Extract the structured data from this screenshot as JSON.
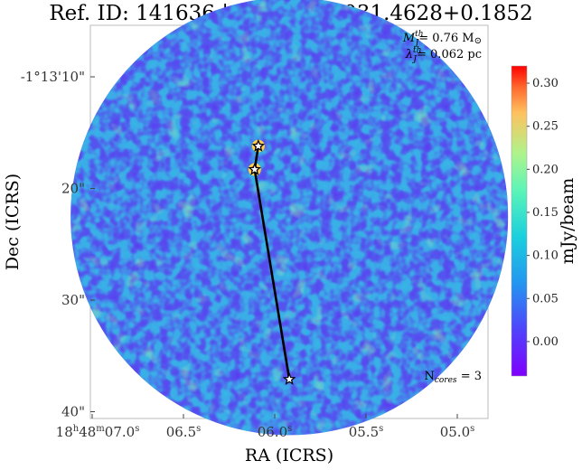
{
  "chart_data": {
    "type": "heatmap",
    "title": "Ref. ID: 141636 | AG ID: AG031.4628+0.1852",
    "xlabel": "RA (ICRS)",
    "ylabel": "Dec (ICRS)",
    "colorbar_label": "mJy/beam",
    "colormap": "rainbow",
    "colorbar_range": [
      -0.04,
      0.32
    ],
    "colorbar_ticks": [
      0.0,
      0.05,
      0.1,
      0.15,
      0.2,
      0.25,
      0.3
    ],
    "colorbar_tick_labels": [
      "0.00",
      "0.05",
      "0.10",
      "0.15",
      "0.20",
      "0.25",
      "0.30"
    ],
    "ra_ticks_sec": [
      7.0,
      6.5,
      6.0,
      5.5,
      5.0
    ],
    "ra_tick_labels": [
      {
        "main": "18",
        "sup1": "h",
        "mid1": "48",
        "sup2": "m",
        "mid2": "07.0",
        "sup3": "s"
      },
      {
        "main": "06.5",
        "sup3": "s"
      },
      {
        "main": "06.0",
        "sup3": "s"
      },
      {
        "main": "05.5",
        "sup3": "s"
      },
      {
        "main": "05.0",
        "sup3": "s"
      }
    ],
    "dec_ticks_arcsec": [
      10,
      20,
      30,
      40
    ],
    "dec_tick_labels": [
      "-1°13'10\"",
      "20\"",
      "30\"",
      "40\""
    ],
    "field_center": {
      "ra_sec": 5.92,
      "dec_arcsec": 22.5
    },
    "field_radius_arcsec": 19.6,
    "cores": [
      {
        "ra_sec": 6.09,
        "dec_arcsec": 16.2
      },
      {
        "ra_sec": 6.11,
        "dec_arcsec": 18.3
      },
      {
        "ra_sec": 5.92,
        "dec_arcsec": 37.1
      }
    ],
    "mst_edges": [
      [
        0,
        1
      ],
      [
        1,
        2
      ]
    ],
    "annotations": {
      "mass_symbol": "M",
      "mass_sup": "th",
      "mass_sub": "J",
      "mass_value": "= 0.76 M",
      "mass_unit_symbol": "⊙",
      "length_symbol": "λ",
      "length_sup": "th",
      "length_sub": "J",
      "length_value": "= 0.062 pc",
      "ncores_text_pre": "N",
      "ncores_sub": "cores",
      "ncores_value": " = 3"
    },
    "grid": false
  }
}
